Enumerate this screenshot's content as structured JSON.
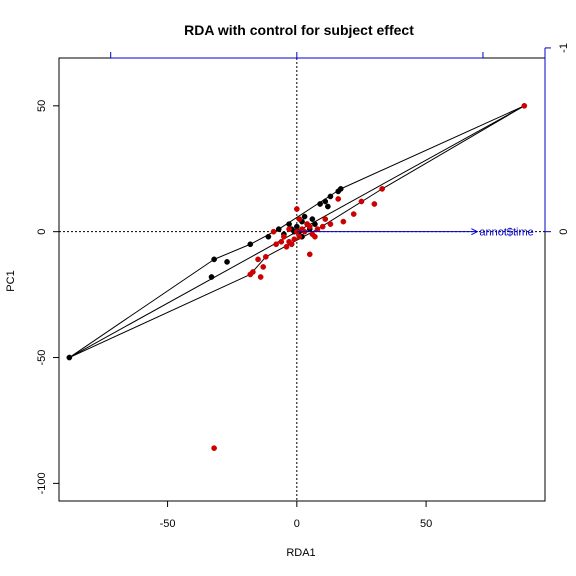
{
  "chart_data": {
    "type": "scatter",
    "title": "RDA with control for subject effect",
    "xlabel": "RDA1",
    "ylabel": "PC1",
    "xlim": [
      -92,
      96
    ],
    "ylim": [
      -107,
      69
    ],
    "xticks": [
      -50,
      0,
      50
    ],
    "yticks": [
      50,
      0,
      -50,
      -100
    ],
    "xtick_labels": [
      "-50",
      "0",
      "50"
    ],
    "ytick_labels": [
      "50",
      "0",
      "-50",
      "-100"
    ],
    "secondary_axes": {
      "x_top_ticks": [
        -1,
        0,
        1
      ],
      "y_right_ticks": [
        0,
        -1
      ],
      "y_right_tick_labels": [
        "0",
        "-1"
      ],
      "color": "#0000cc"
    },
    "reference_lines": {
      "x": 0,
      "y": 0,
      "style": "dotted"
    },
    "biplot_arrow": {
      "label": "annot$time",
      "x": 0.97,
      "y": 0,
      "color": "#0000cc"
    },
    "series": [
      {
        "color": "#000000",
        "points": [
          [
            -88,
            -50
          ],
          [
            -32,
            -11
          ],
          [
            -27,
            -12
          ],
          [
            -33,
            -18
          ],
          [
            -18,
            -5
          ],
          [
            -11,
            -2
          ],
          [
            -7,
            1
          ],
          [
            -5,
            -1
          ],
          [
            -3,
            3
          ],
          [
            -2,
            1
          ],
          [
            -1,
            0
          ],
          [
            0,
            2
          ],
          [
            1,
            0
          ],
          [
            2,
            4
          ],
          [
            3,
            6
          ],
          [
            4,
            3
          ],
          [
            5,
            1
          ],
          [
            6,
            5
          ],
          [
            7,
            3
          ],
          [
            9,
            11
          ],
          [
            11,
            12
          ],
          [
            13,
            14
          ],
          [
            16,
            16
          ],
          [
            17,
            17
          ],
          [
            12,
            10
          ],
          [
            2,
            -2
          ]
        ]
      },
      {
        "color": "#cc0000",
        "points": [
          [
            88,
            50
          ],
          [
            33,
            17
          ],
          [
            30,
            11
          ],
          [
            25,
            12
          ],
          [
            22,
            7
          ],
          [
            18,
            4
          ],
          [
            13,
            3
          ],
          [
            10,
            2
          ],
          [
            8,
            1
          ],
          [
            6,
            -1
          ],
          [
            5,
            2
          ],
          [
            3,
            0
          ],
          [
            2,
            1
          ],
          [
            1,
            -2
          ],
          [
            0,
            0
          ],
          [
            -1,
            -3
          ],
          [
            -2,
            -5
          ],
          [
            -3,
            -4
          ],
          [
            -4,
            -6
          ],
          [
            -5,
            -2
          ],
          [
            -6,
            -4
          ],
          [
            -8,
            -5
          ],
          [
            -12,
            -10
          ],
          [
            -13,
            -14
          ],
          [
            -15,
            -11
          ],
          [
            -18,
            -17
          ],
          [
            -14,
            -18
          ],
          [
            -17,
            -16
          ],
          [
            0,
            9
          ],
          [
            16,
            13
          ],
          [
            5,
            -9
          ],
          [
            -32,
            -86
          ],
          [
            4,
            3
          ],
          [
            1,
            5
          ],
          [
            -3,
            1
          ],
          [
            7,
            -2
          ],
          [
            -9,
            0
          ],
          [
            11,
            5
          ]
        ]
      }
    ],
    "hull_segments": [
      [
        [
          -88,
          -50
        ],
        [
          88,
          50
        ]
      ],
      [
        [
          -88,
          -50
        ],
        [
          -32,
          -11
        ]
      ],
      [
        [
          -32,
          -11
        ],
        [
          -18,
          -5
        ]
      ],
      [
        [
          -18,
          -5
        ],
        [
          -7,
          1
        ]
      ],
      [
        [
          -7,
          1
        ],
        [
          17,
          17
        ]
      ],
      [
        [
          17,
          17
        ],
        [
          88,
          50
        ]
      ],
      [
        [
          -88,
          -50
        ],
        [
          -18,
          -17
        ]
      ],
      [
        [
          -18,
          -17
        ],
        [
          -12,
          -10
        ]
      ],
      [
        [
          -12,
          -10
        ],
        [
          8,
          1
        ]
      ],
      [
        [
          8,
          1
        ],
        [
          33,
          17
        ]
      ],
      [
        [
          33,
          17
        ],
        [
          88,
          50
        ]
      ]
    ]
  }
}
